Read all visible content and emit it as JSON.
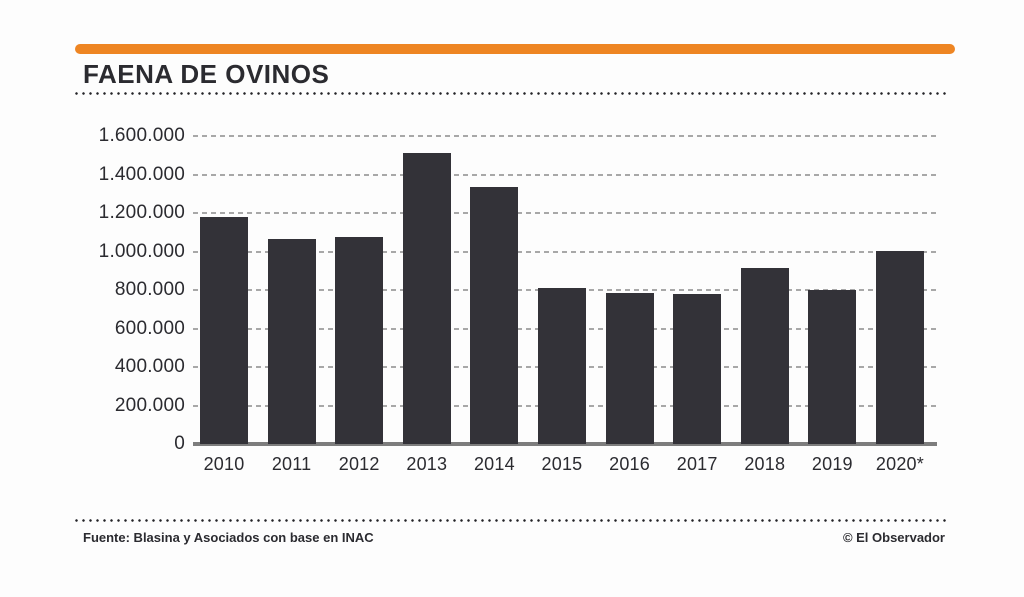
{
  "colors": {
    "accent": "#ee8523",
    "bar": "#333238",
    "grid": "#a8a8a8",
    "axis": "#7d7d7d",
    "text": "#2b2b30",
    "dots": "#232327"
  },
  "header": {
    "title": "FAENA DE OVINOS"
  },
  "footer": {
    "source": "Fuente: Blasina y Asociados con base en INAC",
    "credit": "© El Observador"
  },
  "chart_data": {
    "type": "bar",
    "title": "FAENA DE OVINOS",
    "categories": [
      "2010",
      "2011",
      "2012",
      "2013",
      "2014",
      "2015",
      "2016",
      "2017",
      "2018",
      "2019",
      "2020*"
    ],
    "values": [
      1180000,
      1065000,
      1078000,
      1510000,
      1335000,
      812000,
      786000,
      781000,
      915000,
      800000,
      1003000
    ],
    "xlabel": "",
    "ylabel": "",
    "ylim": [
      0,
      1600000
    ],
    "ytick_interval": 200000,
    "ytick_labels": [
      "1.600.000",
      "1.400.000",
      "1.200.000",
      "1.000.000",
      "800.000",
      "600.000",
      "400.000",
      "200.000",
      "0"
    ],
    "grid": "horizontal-dashed",
    "legend": "none",
    "bar_color": "#333238"
  }
}
